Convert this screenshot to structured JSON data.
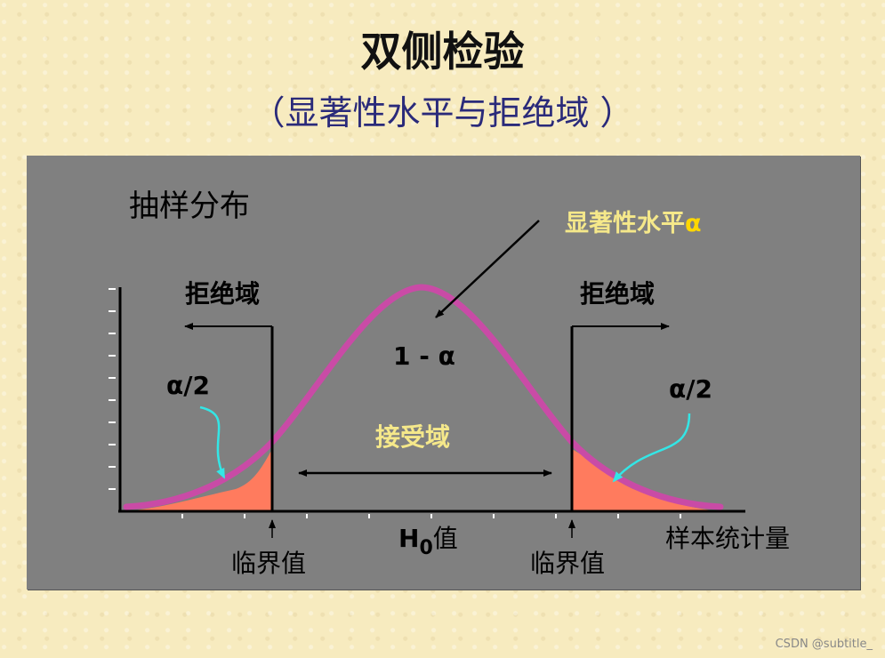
{
  "title": "双侧检验",
  "subtitle": "（显著性水平与拒绝域 ）",
  "diagram": {
    "sampling_distribution_label": "抽样分布",
    "significance_label": "显著性水平",
    "significance_symbol": "α",
    "rejection_left": "拒绝域",
    "rejection_right": "拒绝域",
    "one_minus_alpha": "1 - α",
    "alpha_half_left": "α/2",
    "alpha_half_right": "α/2",
    "acceptance_region": "接受域",
    "h0_main": "H",
    "h0_sub": "0",
    "h0_suffix": "值",
    "critical_left": "临界值",
    "critical_right": "临界值",
    "x_axis_label": "样本统计量",
    "colors": {
      "curve": "#c94ba6",
      "tail_fill": "#ff7b5e",
      "annotation_yellow": "#f5e88a",
      "cyan_arrow": "#33e6e6"
    }
  },
  "watermark": "CSDN @subtitle_"
}
